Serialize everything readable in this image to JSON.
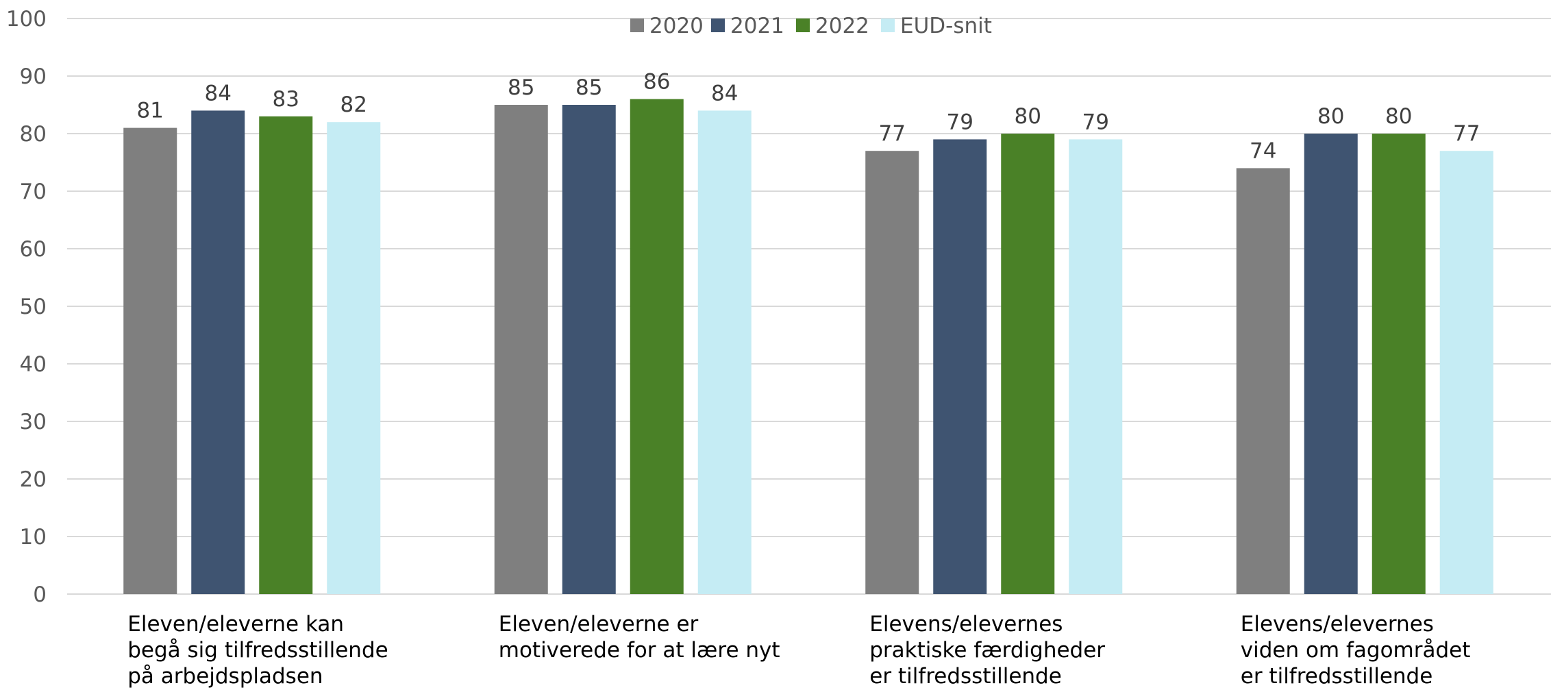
{
  "chart_data": {
    "type": "bar",
    "title": "",
    "xlabel": "",
    "ylabel": "",
    "ylim": [
      0,
      100
    ],
    "yticks": [
      0,
      10,
      20,
      30,
      40,
      50,
      60,
      70,
      80,
      90,
      100
    ],
    "grid": true,
    "legend_position": "top-center",
    "categories": [
      [
        "Eleven/eleverne kan",
        "begå sig tilfredsstillende",
        "på arbejdspladsen"
      ],
      [
        "Eleven/eleverne er",
        "motiverede for at lære nyt"
      ],
      [
        "Elevens/elevernes",
        "praktiske færdigheder",
        "er tilfredsstillende"
      ],
      [
        "Elevens/elevernes",
        "viden om fagområdet",
        "er tilfredsstillende"
      ]
    ],
    "series": [
      {
        "name": "2020",
        "color": "#7f7f7f",
        "values": [
          81,
          85,
          77,
          74
        ]
      },
      {
        "name": "2021",
        "color": "#3f5471",
        "values": [
          84,
          85,
          79,
          80
        ]
      },
      {
        "name": "2022",
        "color": "#4a8127",
        "values": [
          83,
          86,
          80,
          80
        ]
      },
      {
        "name": "EUD-snit",
        "color": "#c5ecf4",
        "values": [
          82,
          84,
          79,
          77
        ]
      }
    ]
  }
}
